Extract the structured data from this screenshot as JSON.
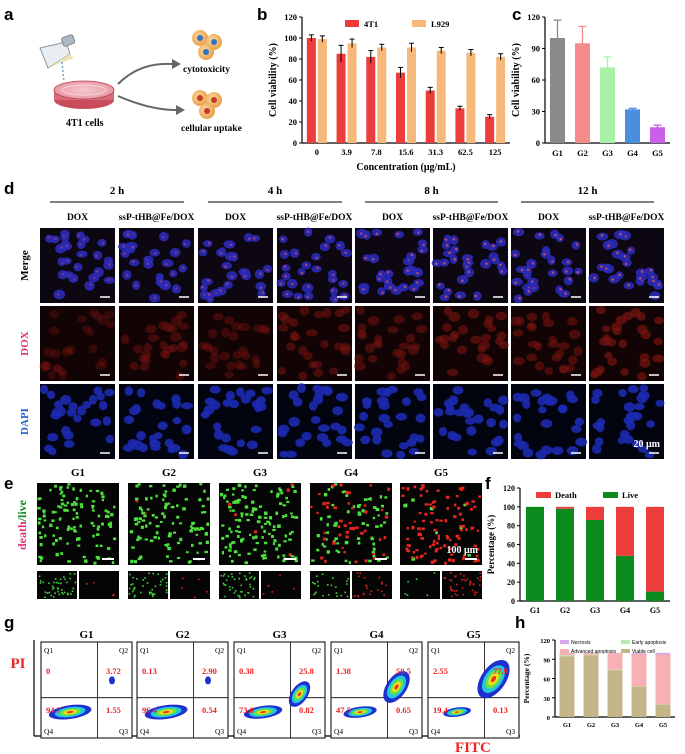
{
  "panel_letters": {
    "a": "a",
    "b": "b",
    "c": "c",
    "d": "d",
    "e": "e",
    "f": "f",
    "g": "g",
    "h": "h"
  },
  "colors": {
    "red": "#ec3c3c",
    "tan": "#f6b97a",
    "green": "#0c8a1e",
    "pink": "#f26a6a",
    "navy": "#1c1c6a"
  },
  "panel_a": {
    "cells_label": "4T1 cells",
    "outcome1": "cytotoxicity",
    "outcome2": "cellular uptake"
  },
  "panel_d": {
    "times": [
      "2 h",
      "4 h",
      "8 h",
      "12 h"
    ],
    "conditions": [
      "DOX",
      "ssP-tHB@Fe/DOX"
    ],
    "rows": [
      "Merge",
      "DOX",
      "DAPI"
    ],
    "scale": "20 μm"
  },
  "panel_e": {
    "groups": [
      "G1",
      "G2",
      "G3",
      "G4",
      "G5"
    ],
    "ylabel_death": "death",
    "ylabel_live": "/live",
    "scale": "100 μm"
  },
  "panel_g": {
    "groups": [
      "G1",
      "G2",
      "G3",
      "G4",
      "G5"
    ],
    "quadrants": [
      "Q1",
      "Q2",
      "Q3",
      "Q4"
    ],
    "q1": [
      "0",
      "0.13",
      "0.38",
      "1.38",
      "2.55"
    ],
    "q2": [
      "3.72",
      "2.90",
      "25.8",
      "50.5",
      "77.9"
    ],
    "q3": [
      "1.55",
      "0.54",
      "0.82",
      "0.65",
      "0.13"
    ],
    "q4": [
      "94.7",
      "96.4",
      "73.0",
      "47.5",
      "19.4"
    ],
    "xlabel": "FITC",
    "ylabel": "PI"
  },
  "chart_data": [
    {
      "id": "b",
      "type": "bar",
      "categories": [
        "0",
        "3.9",
        "7.8",
        "15.6",
        "31.3",
        "62.5",
        "125"
      ],
      "series": [
        {
          "name": "4T1",
          "values": [
            100,
            85,
            82,
            67,
            50,
            33,
            25
          ],
          "errors": [
            3,
            8,
            6,
            5,
            3,
            2,
            2
          ]
        },
        {
          "name": "L929",
          "values": [
            99,
            95,
            91,
            91,
            88,
            86,
            82
          ],
          "errors": [
            3,
            4,
            3,
            4,
            3,
            3,
            3
          ]
        }
      ],
      "xlabel": "Concentration (μg/mL)",
      "ylabel": "Cell viability (%)",
      "ylim": [
        0,
        120
      ],
      "yticks": [
        "0",
        "20",
        "40",
        "60",
        "80",
        "100",
        "120"
      ],
      "legend": "top"
    },
    {
      "id": "c",
      "type": "bar",
      "categories": [
        "G1",
        "G2",
        "G3",
        "G4",
        "G5"
      ],
      "values": [
        100,
        95,
        72,
        32,
        15
      ],
      "errors": [
        17,
        16,
        10,
        1,
        2
      ],
      "colors": [
        "#8a8a8a",
        "#f48a8a",
        "#a8f2a8",
        "#4a8ee0",
        "#c860e8"
      ],
      "xlabel": "",
      "ylabel": "Cell viability (%)",
      "ylim": [
        0,
        120
      ],
      "yticks": [
        "0",
        "30",
        "60",
        "90",
        "120"
      ]
    },
    {
      "id": "f",
      "type": "bar",
      "stacked": true,
      "categories": [
        "G1",
        "G2",
        "G3",
        "G4",
        "G5"
      ],
      "series": [
        {
          "name": "Live",
          "values": [
            100,
            98,
            86,
            48,
            10
          ]
        },
        {
          "name": "Death",
          "values": [
            0,
            2,
            14,
            52,
            90
          ]
        }
      ],
      "xlabel": "",
      "ylabel": "Percentage (%)",
      "ylim": [
        0,
        120
      ],
      "yticks": [
        "0",
        "20",
        "40",
        "60",
        "80",
        "100",
        "120"
      ],
      "legend": "top"
    },
    {
      "id": "h",
      "type": "bar",
      "stacked": true,
      "categories": [
        "G1",
        "G2",
        "G3",
        "G4",
        "G5"
      ],
      "series": [
        {
          "name": "Viable cell",
          "values": [
            94.7,
            96.4,
            73.0,
            47.5,
            19.4
          ]
        },
        {
          "name": "Early apoptosis",
          "values": [
            1.55,
            0.54,
            0.82,
            0.65,
            0.13
          ]
        },
        {
          "name": "Advanced apoptosis",
          "values": [
            3.72,
            2.9,
            25.8,
            50.5,
            77.9
          ]
        },
        {
          "name": "Necrosis",
          "values": [
            0,
            0.13,
            0.38,
            1.38,
            2.55
          ]
        }
      ],
      "xlabel": "",
      "ylabel": "Percentage (%)",
      "ylim": [
        0,
        120
      ],
      "yticks": [
        "0",
        "30",
        "60",
        "90",
        "120"
      ],
      "legend": "top"
    }
  ]
}
